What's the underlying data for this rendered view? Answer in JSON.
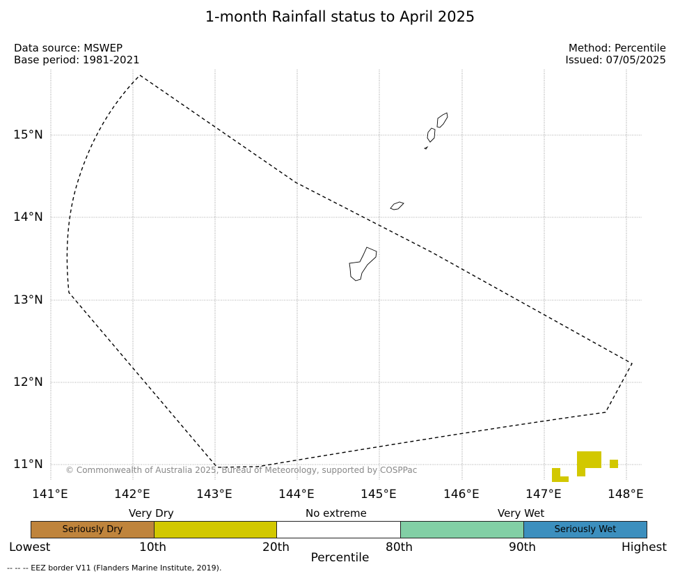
{
  "title": "1-month Rainfall status to April 2025",
  "header": {
    "data_source": "Data source: MSWEP",
    "base_period": "Base period: 1981-2021",
    "method": "Method: Percentile",
    "issued": "Issued: 07/05/2025"
  },
  "map": {
    "lat_ticks": [
      "15°N",
      "14°N",
      "13°N",
      "12°N",
      "11°N"
    ],
    "lon_ticks": [
      "141°E",
      "142°E",
      "143°E",
      "144°E",
      "145°E",
      "146°E",
      "147°E",
      "148°E"
    ],
    "grid": true,
    "boundary_style": "dashed",
    "copyright": "© Commonwealth of Australia 2025, Bureau of Meteorology, supported by COSPPac",
    "dry_cell_color": "#d2c800"
  },
  "legend": {
    "category_labels": [
      "Very Dry",
      "No extreme",
      "Very Wet"
    ],
    "segments": [
      {
        "label": "Seriously Dry",
        "color": "#bf843c"
      },
      {
        "label": "",
        "color": "#d2c800"
      },
      {
        "label": "",
        "color": "#ffffff"
      },
      {
        "label": "",
        "color": "#82cfa5"
      },
      {
        "label": "Seriously Wet",
        "color": "#3c8fbe"
      }
    ],
    "scale_labels": [
      "Lowest",
      "10th",
      "20th",
      "80th",
      "90th",
      "Highest"
    ],
    "axis_label": "Percentile"
  },
  "footnote": "--  --  -- EEZ border V11 (Flanders Marine Institute, 2019)."
}
